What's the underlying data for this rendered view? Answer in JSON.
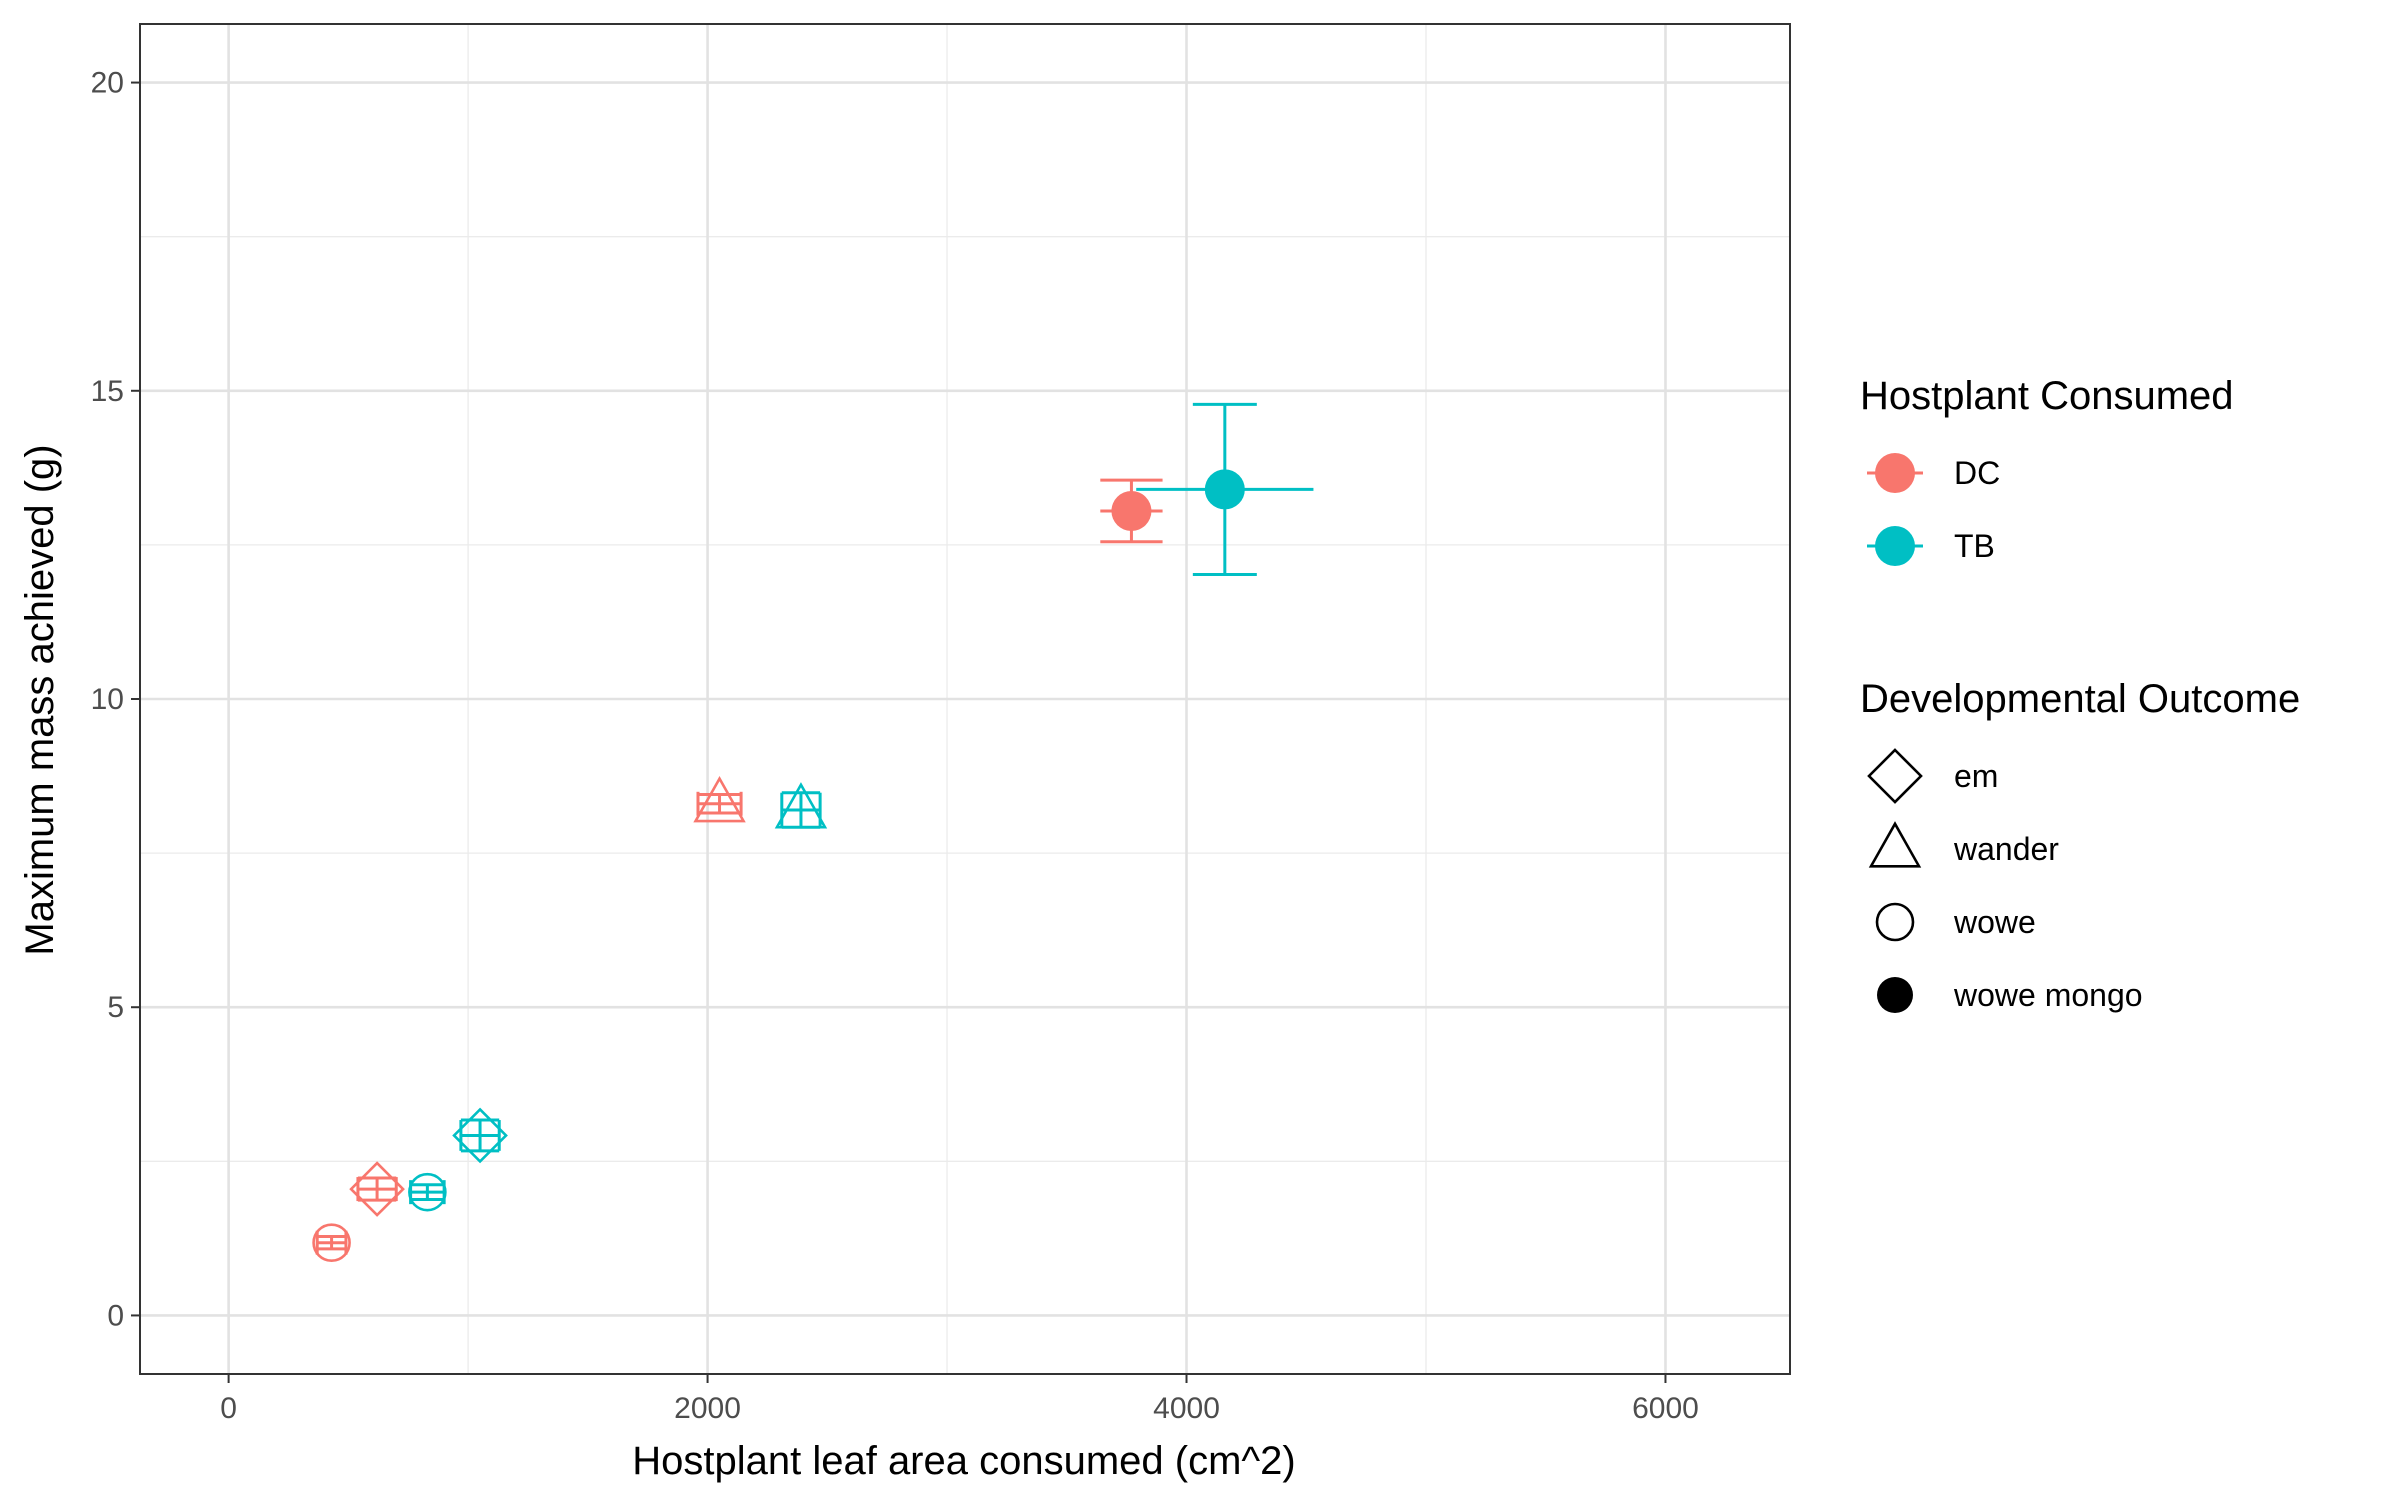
{
  "chart_data": {
    "type": "scatter",
    "title": "",
    "xlabel": "Hostplant leaf area consumed (cm^2)",
    "ylabel": "Maximum mass achieved (g)",
    "xlim": [
      -370,
      6520
    ],
    "ylim": [
      -0.95,
      20.95
    ],
    "x_ticks": [
      0,
      2000,
      4000,
      6000
    ],
    "y_ticks": [
      0,
      5,
      10,
      15,
      20
    ],
    "x_tick_labels": [
      "0",
      "2000",
      "4000",
      "6000"
    ],
    "y_tick_labels": [
      "0",
      "5",
      "10",
      "15",
      "20"
    ],
    "grid": true,
    "legend_position": "right",
    "colors": {
      "DC": "#F8766D",
      "TB": "#00BFC4"
    },
    "legend": {
      "color_title": "Hostplant Consumed",
      "color_entries": [
        "DC",
        "TB"
      ],
      "shape_title": "Developmental Outcome",
      "shape_entries": [
        {
          "label": "em",
          "shape": "diamond-open"
        },
        {
          "label": "wander",
          "shape": "triangle-open"
        },
        {
          "label": "wowe",
          "shape": "circle-open"
        },
        {
          "label": "wowe mongo",
          "shape": "circle-filled"
        }
      ]
    },
    "series": [
      {
        "hostplant": "DC",
        "outcome": "wowe",
        "x": 430,
        "y": 1.18,
        "xerr": 60,
        "yerr": 0.1
      },
      {
        "hostplant": "DC",
        "outcome": "em",
        "x": 620,
        "y": 2.05,
        "xerr": 80,
        "yerr": 0.18
      },
      {
        "hostplant": "TB",
        "outcome": "wowe",
        "x": 830,
        "y": 2.0,
        "xerr": 70,
        "yerr": 0.12
      },
      {
        "hostplant": "TB",
        "outcome": "em",
        "x": 1050,
        "y": 2.92,
        "xerr": 80,
        "yerr": 0.25
      },
      {
        "hostplant": "DC",
        "outcome": "wander",
        "x": 2050,
        "y": 8.3,
        "xerr": 90,
        "yerr": 0.15
      },
      {
        "hostplant": "TB",
        "outcome": "wander",
        "x": 2390,
        "y": 8.2,
        "xerr": 80,
        "yerr": 0.28
      },
      {
        "hostplant": "DC",
        "outcome": "wowe mongo",
        "x": 3770,
        "y": 13.05,
        "xerr": 130,
        "yerr": 0.5
      },
      {
        "hostplant": "TB",
        "outcome": "wowe mongo",
        "x": 4160,
        "y": 13.4,
        "xerr": 370,
        "yerr": 1.38
      }
    ]
  }
}
